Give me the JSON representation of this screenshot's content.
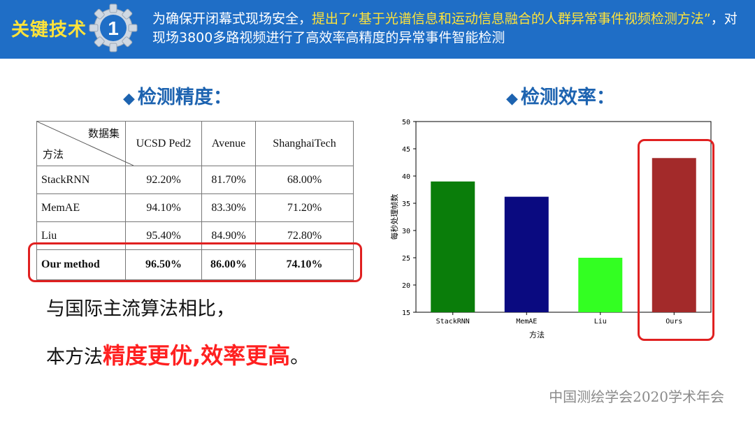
{
  "banner": {
    "label": "关键技术",
    "badge_number": "1",
    "text_part1": "为确保开闭幕式现场安全，",
    "text_highlight": "提出了“基于光谱信息和运动信息融合的人群异常事件视频检测方法”",
    "text_part2": "，对现场3800多路视频进行了高效率高精度的异常事件智能检测"
  },
  "accuracy_section": {
    "title": "检测精度：",
    "table": {
      "header_dataset": "数据集",
      "header_method": "方法",
      "columns": [
        "UCSD Ped2",
        "Avenue",
        "ShanghaiTech"
      ],
      "rows": [
        {
          "method": "StackRNN",
          "values": [
            "92.20%",
            "81.70%",
            "68.00%"
          ]
        },
        {
          "method": "MemAE",
          "values": [
            "94.10%",
            "83.30%",
            "71.20%"
          ]
        },
        {
          "method": "Liu",
          "values": [
            "95.40%",
            "84.90%",
            "72.80%"
          ]
        },
        {
          "method": "Our method",
          "values": [
            "96.50%",
            "86.00%",
            "74.10%"
          ]
        }
      ]
    }
  },
  "efficiency_section": {
    "title": "检测效率："
  },
  "summary": {
    "line1": "与国际主流算法相比，",
    "line2_prefix": "本方法",
    "line2_emphasis": "精度更优,效率更高",
    "line2_suffix": "。"
  },
  "footer": "中国测绘学会2020学术年会",
  "colors": {
    "banner": "#1f6ec6",
    "highlight": "#ffe33a",
    "title_blue": "#1d63b0",
    "red_box": "#e02020"
  },
  "chart_data": {
    "type": "bar",
    "categories": [
      "StackRNN",
      "MemAE",
      "Liu",
      "Ours"
    ],
    "values": [
      39,
      36.2,
      25,
      43.3
    ],
    "colors": [
      "#0a7d0a",
      "#0a0a80",
      "#33ff22",
      "#a32a2a"
    ],
    "xlabel": "方法",
    "ylabel": "每秒处理帧数",
    "ylim": [
      15,
      50
    ],
    "yticks": [
      15,
      20,
      25,
      30,
      35,
      40,
      45,
      50
    ],
    "grid": false
  }
}
